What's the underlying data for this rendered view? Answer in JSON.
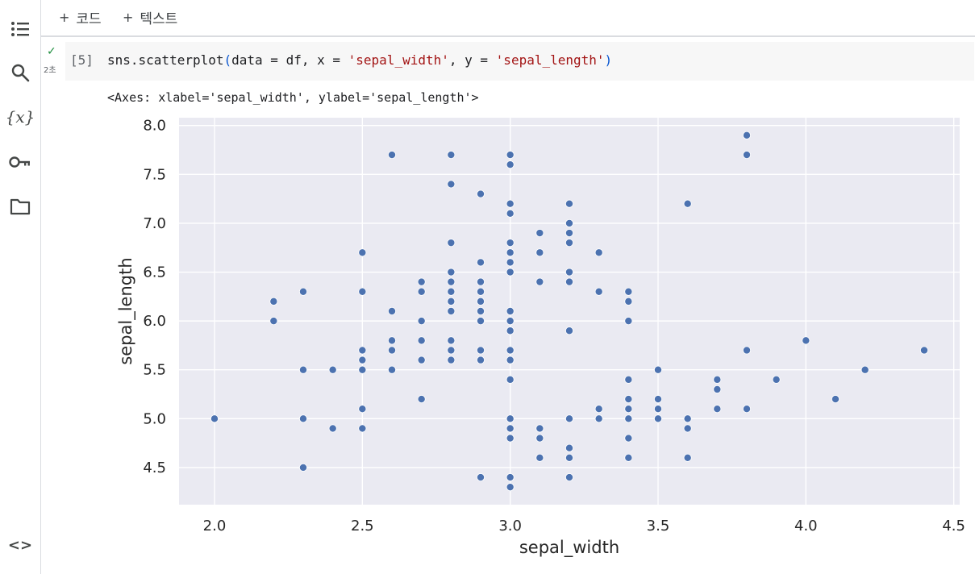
{
  "toolbar": {
    "add_code_label": "코드",
    "add_text_label": "텍스트"
  },
  "sidebar": {
    "items": [
      {
        "icon": "table-of-contents-icon"
      },
      {
        "icon": "search-icon"
      },
      {
        "icon": "variables-icon",
        "glyph": "{x}"
      },
      {
        "icon": "secrets-key-icon"
      },
      {
        "icon": "files-folder-icon"
      },
      {
        "icon": "code-snippets-icon",
        "glyph": "<>"
      }
    ]
  },
  "cell": {
    "status": "✓",
    "exec_time": "2초",
    "exec_count": "[5]",
    "code": {
      "pre": "sns.scatterplot",
      "open": "(",
      "args1": "data = df, x = ",
      "str1": "'sepal_width'",
      "args2": ", y = ",
      "str2": "'sepal_length'",
      "close": ")"
    },
    "output_text": "<Axes: xlabel='sepal_width', ylabel='sepal_length'>"
  },
  "chart_data": {
    "type": "scatter",
    "xlabel": "sepal_width",
    "ylabel": "sepal_length",
    "xlim": [
      1.88,
      4.52
    ],
    "ylim": [
      4.12,
      8.08
    ],
    "xticks": [
      "2.0",
      "2.5",
      "3.0",
      "3.5",
      "4.0",
      "4.5"
    ],
    "yticks": [
      "4.5",
      "5.0",
      "5.5",
      "6.0",
      "6.5",
      "7.0",
      "7.5",
      "8.0"
    ],
    "grid": true,
    "background": "#eaeaf2",
    "point_color": "#4c72b0",
    "points": [
      [
        2.0,
        5.0
      ],
      [
        2.2,
        6.2
      ],
      [
        2.2,
        6.0
      ],
      [
        2.3,
        6.3
      ],
      [
        2.3,
        5.5
      ],
      [
        2.3,
        5.0
      ],
      [
        2.3,
        4.5
      ],
      [
        2.4,
        5.5
      ],
      [
        2.4,
        4.9
      ],
      [
        2.5,
        6.7
      ],
      [
        2.5,
        6.3
      ],
      [
        2.5,
        5.7
      ],
      [
        2.5,
        5.6
      ],
      [
        2.5,
        5.5
      ],
      [
        2.5,
        5.1
      ],
      [
        2.5,
        4.9
      ],
      [
        2.6,
        7.7
      ],
      [
        2.6,
        6.1
      ],
      [
        2.6,
        5.8
      ],
      [
        2.6,
        5.7
      ],
      [
        2.6,
        5.5
      ],
      [
        2.7,
        6.4
      ],
      [
        2.7,
        6.3
      ],
      [
        2.7,
        6.0
      ],
      [
        2.7,
        5.8
      ],
      [
        2.7,
        5.6
      ],
      [
        2.7,
        5.2
      ],
      [
        2.8,
        7.7
      ],
      [
        2.8,
        7.4
      ],
      [
        2.8,
        6.8
      ],
      [
        2.8,
        6.5
      ],
      [
        2.8,
        6.4
      ],
      [
        2.8,
        6.3
      ],
      [
        2.8,
        6.2
      ],
      [
        2.8,
        6.1
      ],
      [
        2.8,
        5.8
      ],
      [
        2.8,
        5.7
      ],
      [
        2.8,
        5.6
      ],
      [
        2.9,
        7.3
      ],
      [
        2.9,
        6.6
      ],
      [
        2.9,
        6.4
      ],
      [
        2.9,
        6.3
      ],
      [
        2.9,
        6.2
      ],
      [
        2.9,
        6.1
      ],
      [
        2.9,
        6.0
      ],
      [
        2.9,
        5.7
      ],
      [
        2.9,
        5.6
      ],
      [
        2.9,
        4.4
      ],
      [
        3.0,
        7.7
      ],
      [
        3.0,
        7.6
      ],
      [
        3.0,
        7.2
      ],
      [
        3.0,
        7.1
      ],
      [
        3.0,
        6.8
      ],
      [
        3.0,
        6.7
      ],
      [
        3.0,
        6.6
      ],
      [
        3.0,
        6.5
      ],
      [
        3.0,
        6.1
      ],
      [
        3.0,
        6.0
      ],
      [
        3.0,
        5.9
      ],
      [
        3.0,
        5.7
      ],
      [
        3.0,
        5.6
      ],
      [
        3.0,
        5.4
      ],
      [
        3.0,
        5.0
      ],
      [
        3.0,
        4.9
      ],
      [
        3.0,
        4.8
      ],
      [
        3.0,
        4.4
      ],
      [
        3.0,
        4.3
      ],
      [
        3.1,
        6.9
      ],
      [
        3.1,
        6.7
      ],
      [
        3.1,
        6.4
      ],
      [
        3.1,
        4.9
      ],
      [
        3.1,
        4.8
      ],
      [
        3.1,
        4.6
      ],
      [
        3.2,
        7.2
      ],
      [
        3.2,
        7.0
      ],
      [
        3.2,
        6.9
      ],
      [
        3.2,
        6.8
      ],
      [
        3.2,
        6.5
      ],
      [
        3.2,
        6.4
      ],
      [
        3.2,
        5.9
      ],
      [
        3.2,
        5.0
      ],
      [
        3.2,
        4.7
      ],
      [
        3.2,
        4.6
      ],
      [
        3.2,
        4.4
      ],
      [
        3.3,
        6.7
      ],
      [
        3.3,
        6.3
      ],
      [
        3.3,
        5.1
      ],
      [
        3.3,
        5.0
      ],
      [
        3.4,
        6.3
      ],
      [
        3.4,
        6.2
      ],
      [
        3.4,
        6.0
      ],
      [
        3.4,
        5.4
      ],
      [
        3.4,
        5.2
      ],
      [
        3.4,
        5.1
      ],
      [
        3.4,
        5.0
      ],
      [
        3.4,
        4.8
      ],
      [
        3.4,
        4.6
      ],
      [
        3.5,
        5.5
      ],
      [
        3.5,
        5.2
      ],
      [
        3.5,
        5.1
      ],
      [
        3.5,
        5.0
      ],
      [
        3.6,
        7.2
      ],
      [
        3.6,
        5.0
      ],
      [
        3.6,
        4.9
      ],
      [
        3.6,
        4.6
      ],
      [
        3.7,
        5.4
      ],
      [
        3.7,
        5.3
      ],
      [
        3.7,
        5.1
      ],
      [
        3.8,
        7.9
      ],
      [
        3.8,
        7.7
      ],
      [
        3.8,
        5.7
      ],
      [
        3.8,
        5.1
      ],
      [
        3.9,
        5.4
      ],
      [
        4.0,
        5.8
      ],
      [
        4.1,
        5.2
      ],
      [
        4.2,
        5.5
      ],
      [
        4.4,
        5.7
      ]
    ]
  }
}
